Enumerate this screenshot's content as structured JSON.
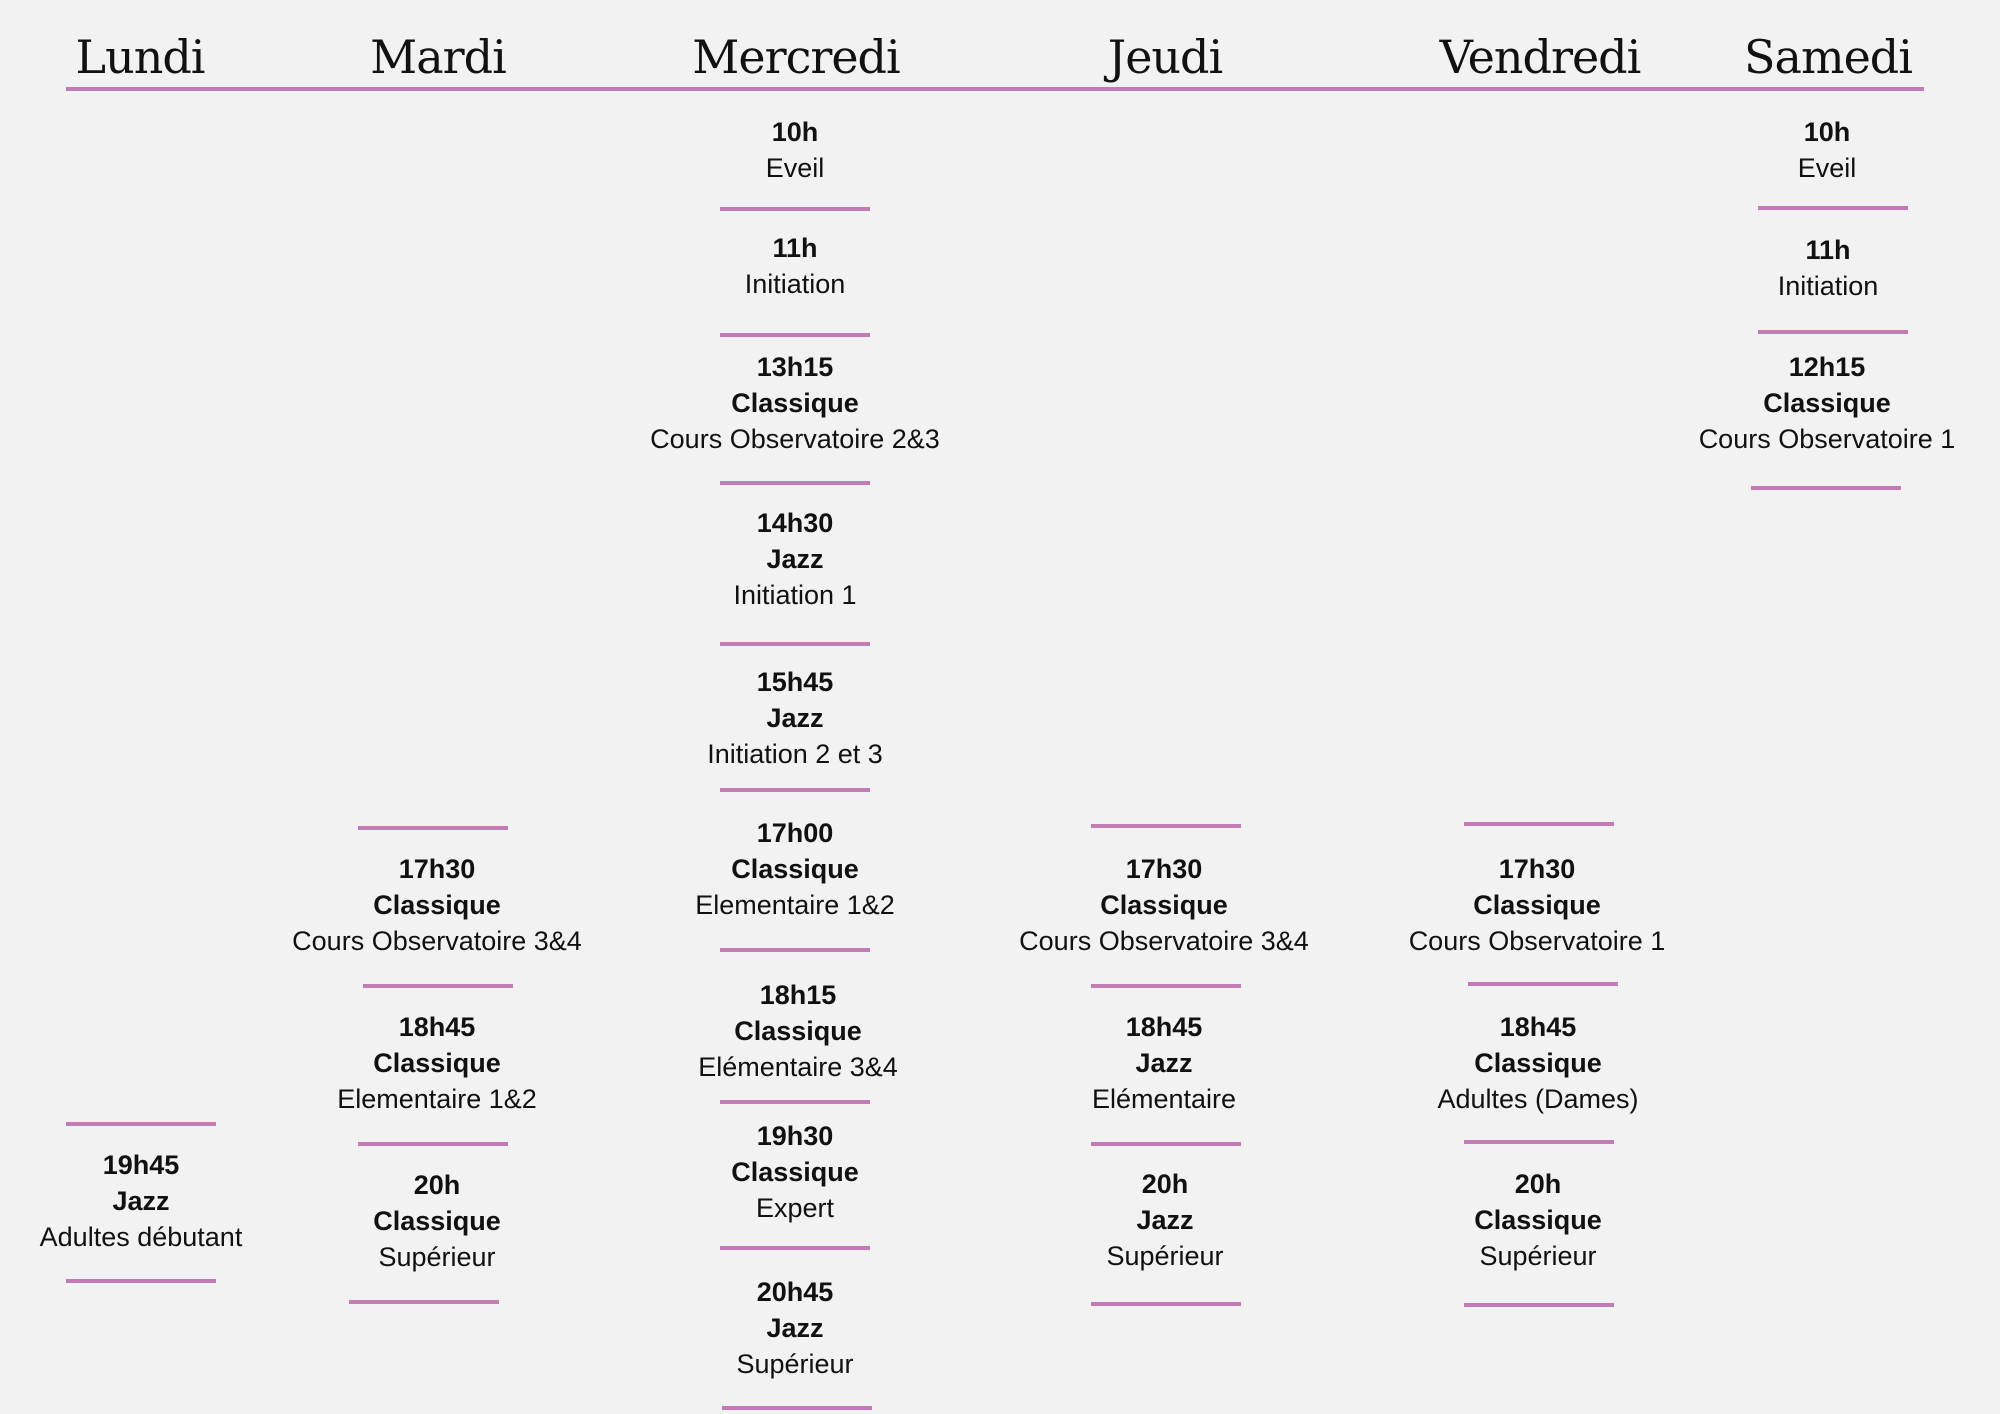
{
  "days": [
    "Lundi",
    "Mardi",
    "Mercredi",
    "Jeudi",
    "Vendredi",
    "Samedi"
  ],
  "colors": {
    "accent": "#c27bb5",
    "background": "#f2f2f2",
    "text": "#111111"
  },
  "schedule": {
    "lundi": [
      {
        "time": "19h45",
        "style": "Jazz",
        "level": "Adultes débutant"
      }
    ],
    "mardi": [
      {
        "time": "17h30",
        "style": "Classique",
        "level": "Cours Observatoire 3&4"
      },
      {
        "time": "18h45",
        "style": "Classique",
        "level": "Elementaire 1&2"
      },
      {
        "time": "20h",
        "style": "Classique",
        "level": "Supérieur"
      }
    ],
    "mercredi": [
      {
        "time": "10h",
        "level": "Eveil"
      },
      {
        "time": "11h",
        "level": "Initiation"
      },
      {
        "time": "13h15",
        "style": "Classique",
        "level": "Cours Observatoire 2&3"
      },
      {
        "time": "14h30",
        "style": "Jazz",
        "level": "Initiation 1"
      },
      {
        "time": "15h45",
        "style": "Jazz",
        "level": "Initiation 2 et 3"
      },
      {
        "time": "17h00",
        "style": "Classique",
        "level": "Elementaire 1&2"
      },
      {
        "time": "18h15",
        "style": "Classique",
        "level": "Elémentaire 3&4"
      },
      {
        "time": "19h30",
        "style": "Classique",
        "level": "Expert"
      },
      {
        "time": "20h45",
        "style": "Jazz",
        "level": "Supérieur"
      }
    ],
    "jeudi": [
      {
        "time": "17h30",
        "style": "Classique",
        "level": "Cours Observatoire 3&4"
      },
      {
        "time": "18h45",
        "style": "Jazz",
        "level": "Elémentaire"
      },
      {
        "time": "20h",
        "style": "Jazz",
        "level": "Supérieur"
      }
    ],
    "vendredi": [
      {
        "time": "17h30",
        "style": "Classique",
        "level": "Cours Observatoire 1"
      },
      {
        "time": "18h45",
        "style": "Classique",
        "level": "Adultes (Dames)"
      },
      {
        "time": "20h",
        "style": "Classique",
        "level": "Supérieur"
      }
    ],
    "samedi": [
      {
        "time": "10h",
        "level": "Eveil"
      },
      {
        "time": "11h",
        "level": "Initiation"
      },
      {
        "time": "12h15",
        "style": "Classique",
        "level": "Cours Observatoire 1"
      }
    ]
  }
}
